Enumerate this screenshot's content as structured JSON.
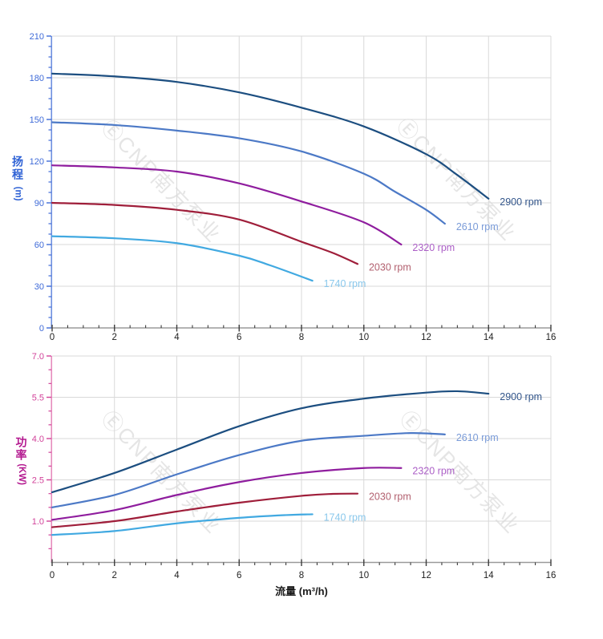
{
  "figure": {
    "watermark_text": "ⒺCNP南方泵业",
    "watermark_color": "#cccccc"
  },
  "x_axis": {
    "label": "流量 (m³/h)",
    "min": 0,
    "max": 16,
    "major_step": 2,
    "minor_step": 0.5,
    "tick_labels": [
      "0",
      "2",
      "4",
      "6",
      "8",
      "10",
      "12",
      "14",
      "16"
    ],
    "tick_values": [
      0,
      2,
      4,
      6,
      8,
      10,
      12,
      14,
      16
    ],
    "spine_color": "#9a9a9a",
    "tick_color": "#3c3c3c",
    "label_color": "#1f1f1f"
  },
  "chart_data": [
    {
      "type": "line",
      "name": "head-vs-flow",
      "title": "",
      "xlabel": "流量 (m³/h)",
      "ylabel": "扬程",
      "y_unit": "(m)",
      "xlim": [
        0,
        16
      ],
      "ylim": [
        0,
        210
      ],
      "grid": true,
      "y_tick_labels": [
        "0",
        "30",
        "60",
        "90",
        "120",
        "150",
        "180",
        "210"
      ],
      "y_tick_values": [
        0,
        30,
        60,
        90,
        120,
        150,
        180,
        210
      ],
      "y_minor_step": 7.5,
      "axis": {
        "spine_color": "#6e8fdf",
        "tick_color": "#3f6bd8",
        "tick_label_color": "#3f6bd8",
        "title_color": "#2f62d5"
      },
      "series": [
        {
          "name": "2900 rpm",
          "color": "#1c4e80",
          "label_color": "#33568b",
          "points": [
            [
              0,
              183
            ],
            [
              2,
              181
            ],
            [
              4,
              177
            ],
            [
              6,
              169.5
            ],
            [
              8,
              158.5
            ],
            [
              10,
              145
            ],
            [
              12,
              125
            ],
            [
              13,
              110
            ],
            [
              14,
              93
            ]
          ]
        },
        {
          "name": "2610 rpm",
          "color": "#4c79c6",
          "label_color": "#7a9bd8",
          "points": [
            [
              0,
              148
            ],
            [
              2,
              146
            ],
            [
              4,
              142
            ],
            [
              6,
              136.5
            ],
            [
              8,
              127
            ],
            [
              10,
              111
            ],
            [
              11,
              98
            ],
            [
              12,
              85
            ],
            [
              12.6,
              75
            ]
          ]
        },
        {
          "name": "2320 rpm",
          "color": "#8f1d9e",
          "label_color": "#ab5ec6",
          "points": [
            [
              0,
              117
            ],
            [
              2,
              115.5
            ],
            [
              4,
              112.5
            ],
            [
              6,
              104
            ],
            [
              8,
              91
            ],
            [
              10,
              76
            ],
            [
              11.2,
              60
            ]
          ]
        },
        {
          "name": "2030 rpm",
          "color": "#9f1e3a",
          "label_color": "#b2606f",
          "points": [
            [
              0,
              90
            ],
            [
              2,
              88.5
            ],
            [
              4,
              85
            ],
            [
              6,
              78
            ],
            [
              8,
              62
            ],
            [
              9,
              54
            ],
            [
              9.8,
              46
            ]
          ]
        },
        {
          "name": "1740 rpm",
          "color": "#41a9e1",
          "label_color": "#8ac8ec",
          "points": [
            [
              0,
              66
            ],
            [
              2,
              64.5
            ],
            [
              4,
              61
            ],
            [
              6,
              52
            ],
            [
              7,
              45
            ],
            [
              8.35,
              34
            ]
          ]
        }
      ]
    },
    {
      "type": "line",
      "name": "power-vs-flow",
      "title": "",
      "xlabel": "流量 (m³/h)",
      "ylabel": "功率",
      "y_unit": "(KW)",
      "xlim": [
        0,
        16
      ],
      "ylim": [
        -0.5,
        7
      ],
      "grid": true,
      "y_tick_labels": [
        "1.0",
        "2.5",
        "4.0",
        "5.5",
        "7.0"
      ],
      "y_tick_values": [
        1,
        2.5,
        4,
        5.5,
        7
      ],
      "y_minor_step": 0.5,
      "axis": {
        "spine_color": "#e68bbd",
        "tick_color": "#d2439a",
        "tick_label_color": "#d2439a",
        "title_color": "#b3188f"
      },
      "series": [
        {
          "name": "2900 rpm",
          "color": "#1c4e80",
          "label_color": "#33568b",
          "points": [
            [
              0,
              2.05
            ],
            [
              2,
              2.75
            ],
            [
              4,
              3.6
            ],
            [
              6,
              4.45
            ],
            [
              8,
              5.1
            ],
            [
              10,
              5.45
            ],
            [
              12,
              5.67
            ],
            [
              13,
              5.72
            ],
            [
              14,
              5.63
            ]
          ]
        },
        {
          "name": "2610 rpm",
          "color": "#4c79c6",
          "label_color": "#7a9bd8",
          "points": [
            [
              0,
              1.5
            ],
            [
              2,
              1.95
            ],
            [
              4,
              2.7
            ],
            [
              6,
              3.4
            ],
            [
              8,
              3.92
            ],
            [
              10,
              4.1
            ],
            [
              11.5,
              4.2
            ],
            [
              12.6,
              4.15
            ]
          ]
        },
        {
          "name": "2320 rpm",
          "color": "#8f1d9e",
          "label_color": "#ab5ec6",
          "points": [
            [
              0,
              1.05
            ],
            [
              2,
              1.4
            ],
            [
              4,
              1.95
            ],
            [
              6,
              2.42
            ],
            [
              8,
              2.75
            ],
            [
              10,
              2.93
            ],
            [
              11.2,
              2.93
            ]
          ]
        },
        {
          "name": "2030 rpm",
          "color": "#9f1e3a",
          "label_color": "#b2606f",
          "points": [
            [
              0,
              0.78
            ],
            [
              2,
              1.0
            ],
            [
              4,
              1.35
            ],
            [
              6,
              1.67
            ],
            [
              8,
              1.92
            ],
            [
              9,
              1.99
            ],
            [
              9.8,
              2.0
            ]
          ]
        },
        {
          "name": "1740 rpm",
          "color": "#41a9e1",
          "label_color": "#8ac8ec",
          "points": [
            [
              0,
              0.5
            ],
            [
              2,
              0.64
            ],
            [
              4,
              0.92
            ],
            [
              6,
              1.12
            ],
            [
              7.5,
              1.22
            ],
            [
              8.35,
              1.25
            ]
          ]
        }
      ]
    }
  ]
}
